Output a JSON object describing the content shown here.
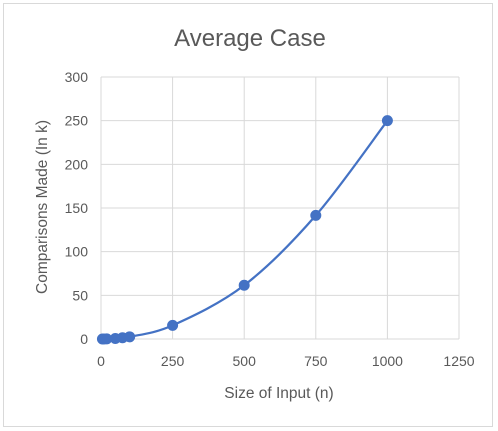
{
  "chart_data": {
    "type": "scatter",
    "title": "Average Case",
    "xlabel": "Size of Input (n)",
    "ylabel": "Comparisons Made (In k)",
    "xlim": [
      0,
      1250
    ],
    "ylim": [
      0,
      300
    ],
    "x_ticks": [
      "0",
      "250",
      "500",
      "750",
      "1000",
      "1250"
    ],
    "y_ticks": [
      "0",
      "50",
      "100",
      "150",
      "200",
      "250",
      "300"
    ],
    "grid": true,
    "smooth_line": true,
    "series": [
      {
        "x": [
          5,
          10,
          20,
          50,
          75,
          100,
          250,
          500,
          750,
          1000
        ],
        "y": [
          0.01,
          0.03,
          0.1,
          0.6,
          1.4,
          2.5,
          15.6,
          61.5,
          141.5,
          250
        ],
        "color": "#4472c4"
      }
    ]
  }
}
